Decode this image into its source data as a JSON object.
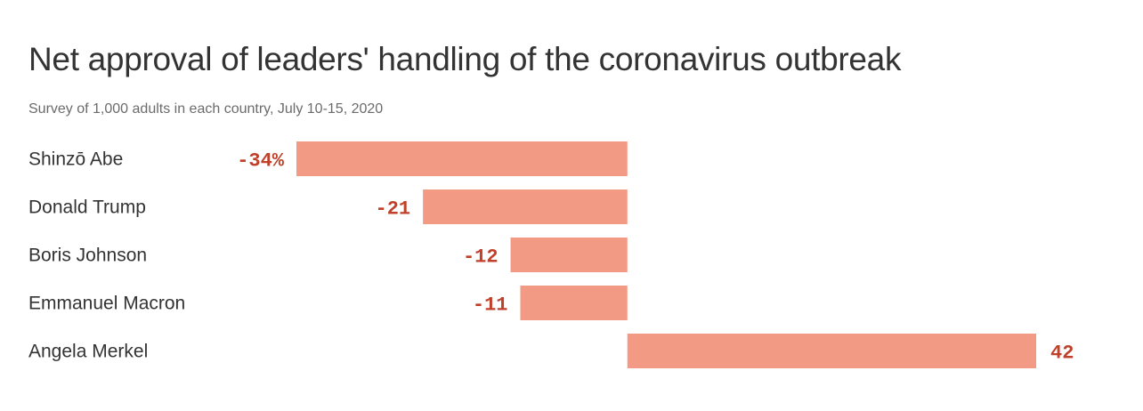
{
  "chart_data": {
    "type": "bar",
    "orientation": "horizontal",
    "title": "Net approval of leaders' handling of the coronavirus outbreak",
    "subtitle": "Survey of 1,000 adults in each country, July 10-15, 2020",
    "categories": [
      "Shinzō Abe",
      "Donald Trump",
      "Boris Johnson",
      "Emmanuel Macron",
      "Angela Merkel"
    ],
    "values": [
      -34,
      -21,
      -12,
      -11,
      42
    ],
    "value_labels": [
      "-34%",
      "-21",
      "-12",
      "-11",
      "42"
    ],
    "xlim": [
      -34,
      42
    ],
    "grid": false,
    "legend": "none",
    "colors": {
      "bar": "#f29a83",
      "value_label": "#c0402a",
      "category_label": "#333333"
    }
  }
}
